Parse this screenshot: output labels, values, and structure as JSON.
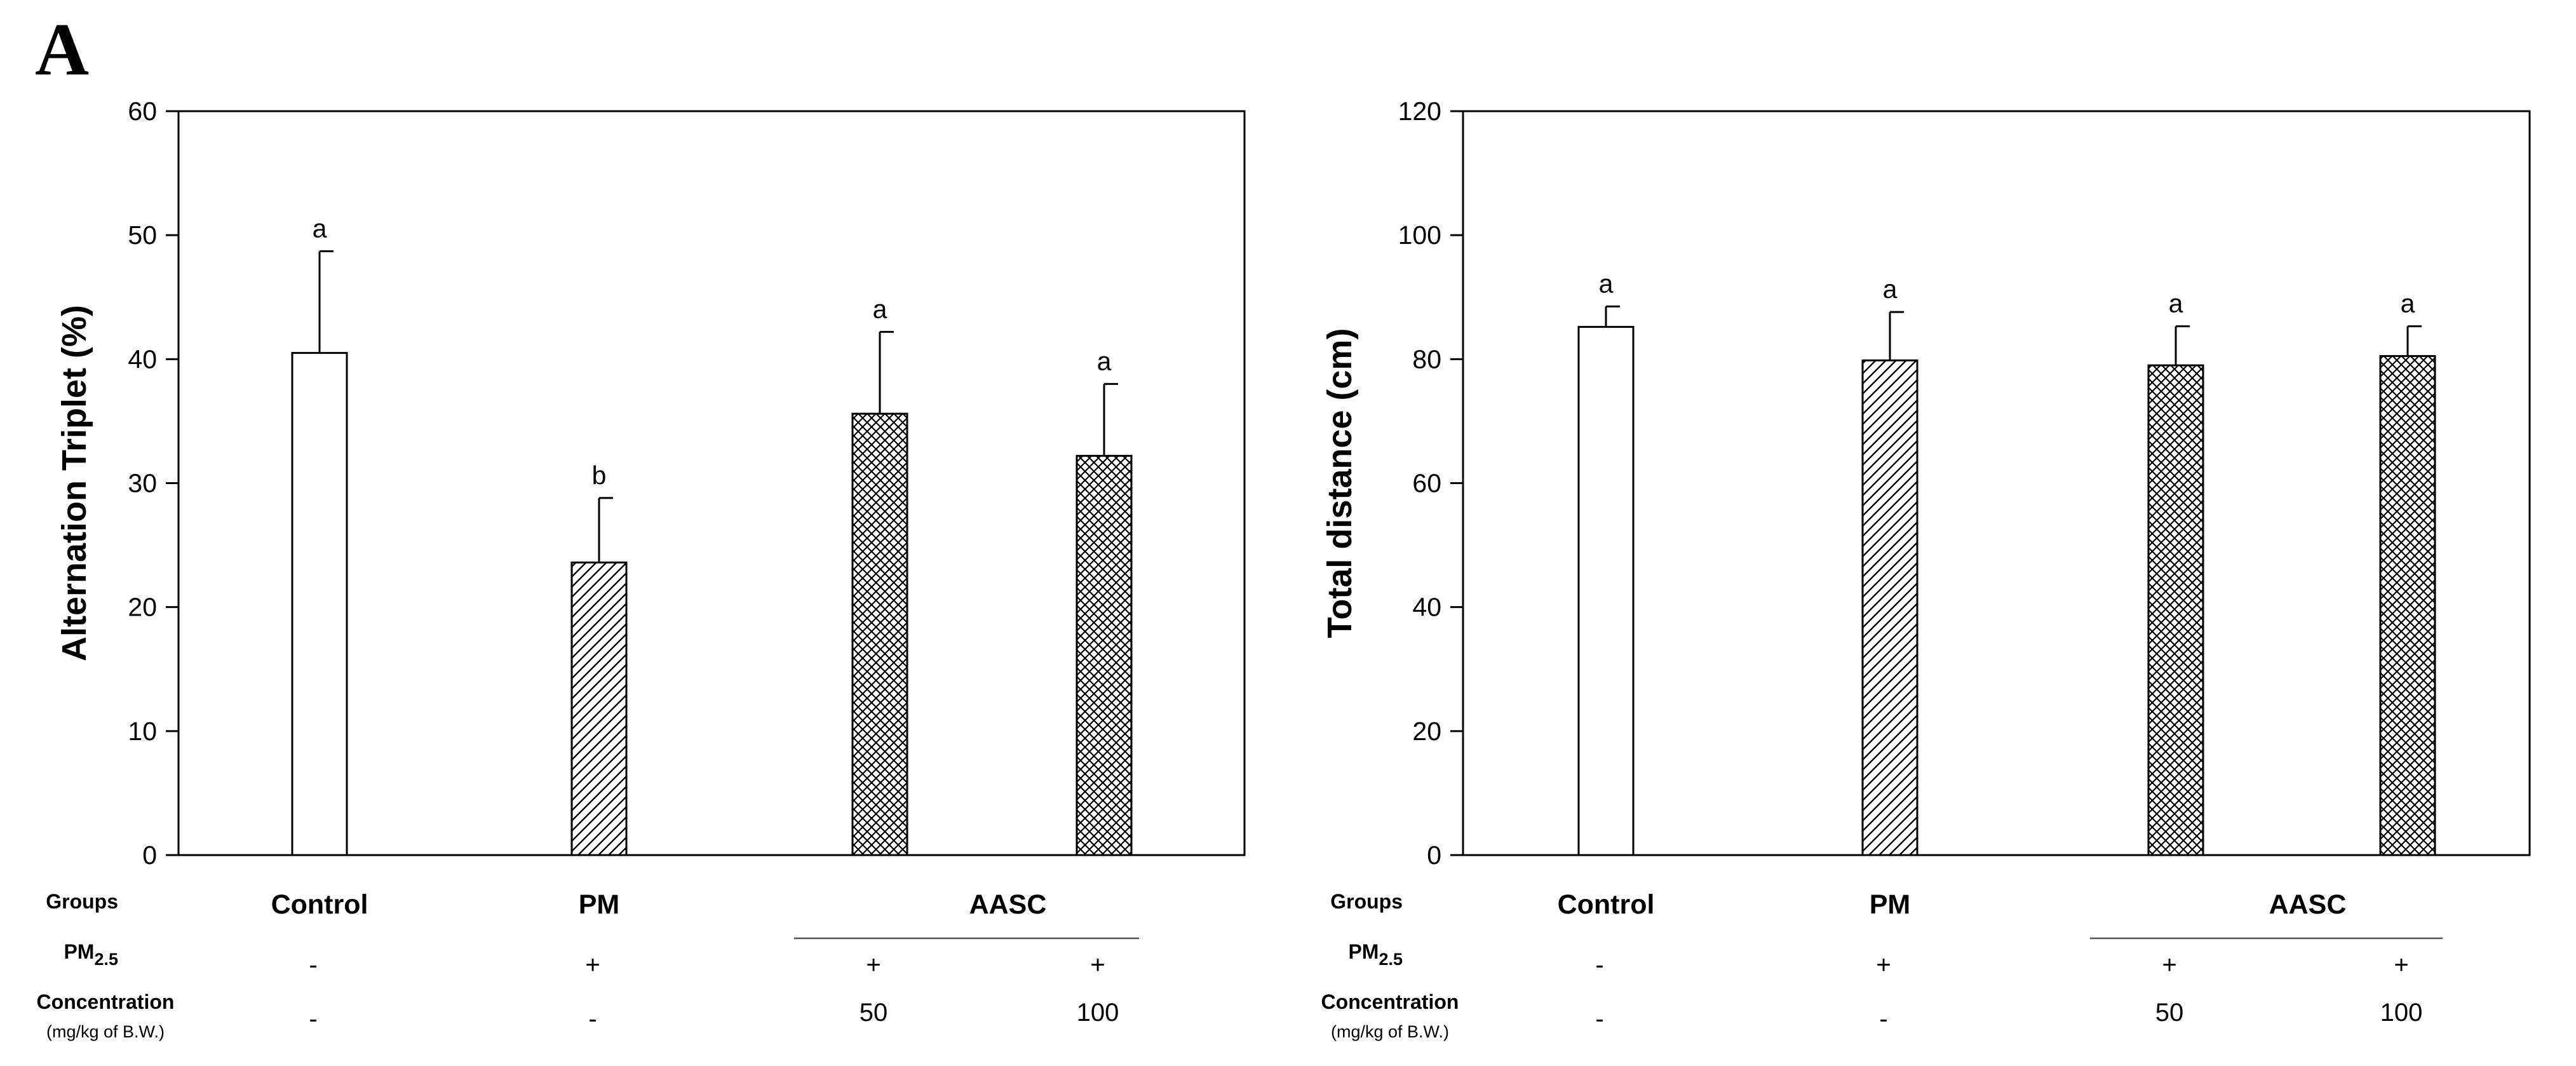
{
  "panel_letter": "A",
  "table": {
    "row_groups": "Groups",
    "row_pm": "PM",
    "row_pm_sub": "2.5",
    "row_conc": "Concentration",
    "row_conc_unit": "(mg/kg of B.W.)",
    "group_names": [
      "Control",
      "PM",
      "AASC"
    ],
    "pm_values": [
      "-",
      "+",
      "+",
      "+"
    ],
    "conc_values": [
      "-",
      "-",
      "50",
      "100"
    ]
  },
  "colors": {
    "axis": "#000000",
    "bar_fill": "#ffffff"
  },
  "chart_data": [
    {
      "type": "bar",
      "ylabel": "Alternation Triplet (%)",
      "xlabel": "",
      "ylim": [
        0,
        60
      ],
      "yticks": [
        0,
        10,
        20,
        30,
        40,
        50,
        60
      ],
      "categories": [
        "Control",
        "PM",
        "AASC 50",
        "AASC 100"
      ],
      "values": [
        40.5,
        23.6,
        35.6,
        32.2
      ],
      "errors": [
        8.2,
        5.2,
        6.6,
        5.8
      ],
      "significance": [
        "a",
        "b",
        "a",
        "a"
      ],
      "patterns": [
        "none",
        "diagonal",
        "crosshatch",
        "crosshatch"
      ]
    },
    {
      "type": "bar",
      "ylabel": "Total distance (cm)",
      "xlabel": "",
      "ylim": [
        0,
        120
      ],
      "yticks": [
        0,
        20,
        40,
        60,
        80,
        100,
        120
      ],
      "categories": [
        "Control",
        "PM",
        "AASC 50",
        "AASC 100"
      ],
      "values": [
        85.2,
        79.8,
        79.0,
        80.5
      ],
      "errors": [
        3.3,
        7.8,
        6.3,
        4.8
      ],
      "significance": [
        "a",
        "a",
        "a",
        "a"
      ],
      "patterns": [
        "none",
        "diagonal",
        "crosshatch",
        "crosshatch"
      ]
    }
  ]
}
